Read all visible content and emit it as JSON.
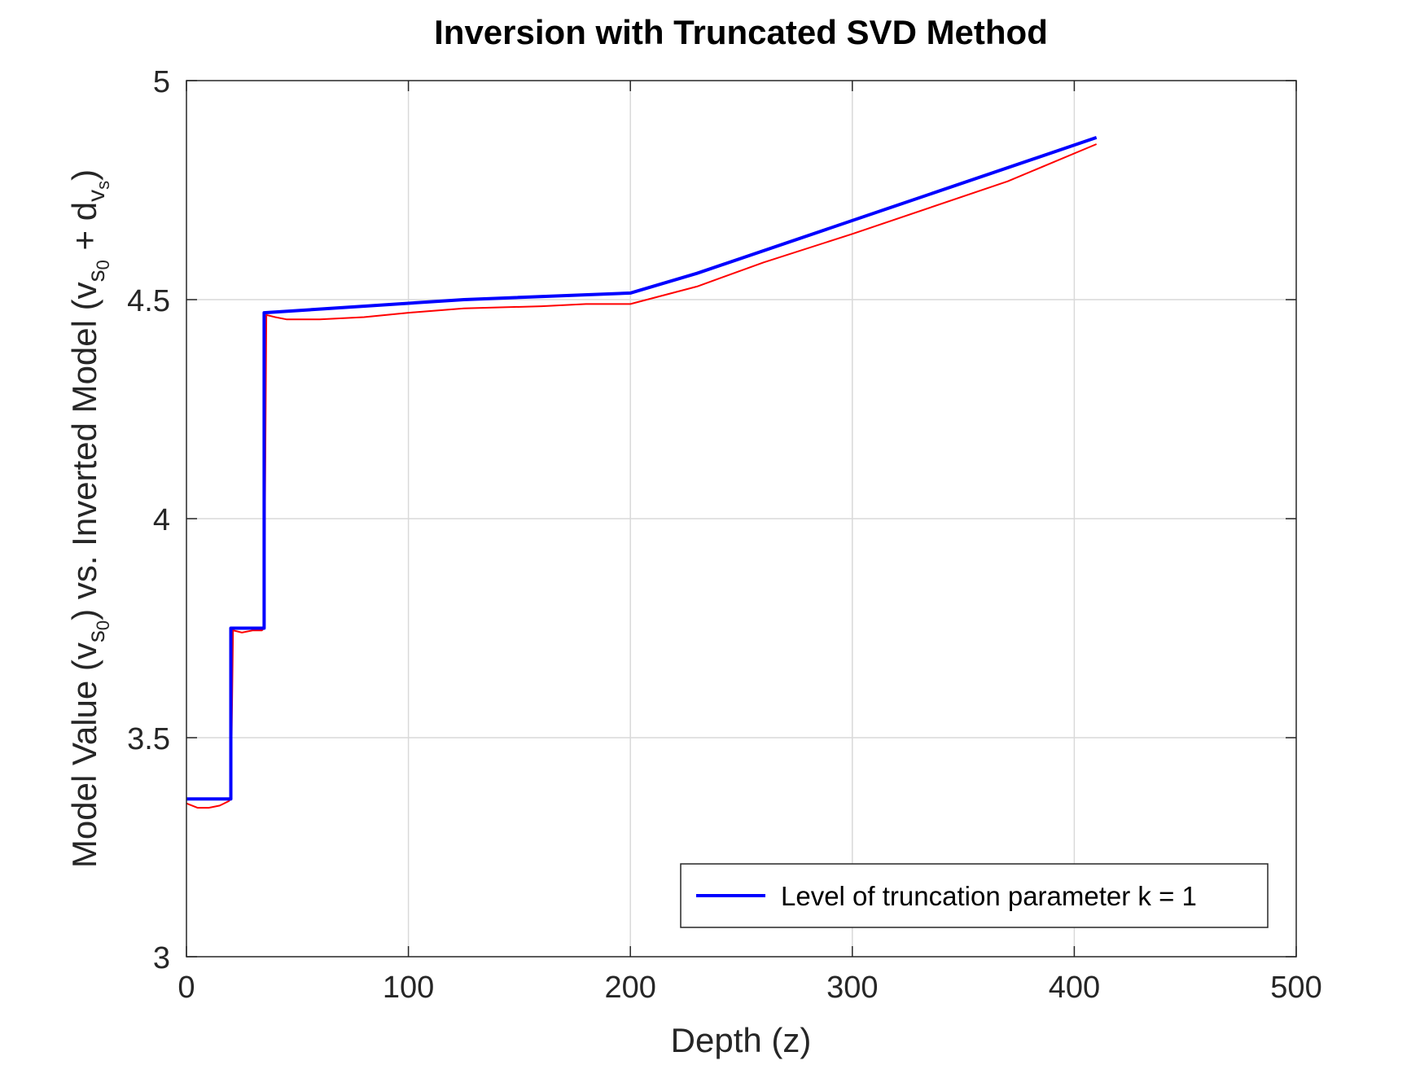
{
  "chart_data": {
    "type": "line",
    "title": "Inversion with Truncated SVD Method",
    "xlabel": "Depth (z)",
    "ylabel": {
      "part1": "Model Value (v",
      "sub1": "s",
      "sub1b": "0",
      "part2": ") vs. Inverted Model (v",
      "sub2": "s",
      "sub2b": "0",
      "part3": " + d",
      "sub3": "v",
      "sub3b": "s",
      "part4": ")"
    },
    "xlim": [
      0,
      500
    ],
    "ylim": [
      3,
      5
    ],
    "xticks": [
      0,
      100,
      200,
      300,
      400,
      500
    ],
    "xtick_labels": [
      "0",
      "100",
      "200",
      "300",
      "400",
      "500"
    ],
    "yticks": [
      3,
      3.5,
      4,
      4.5,
      5
    ],
    "ytick_labels": [
      "3",
      "3.5",
      "4",
      "4.5",
      "5"
    ],
    "grid": true,
    "legend_placement": "bottom-right",
    "legend_entries": [
      "Level of truncation parameter k = 1"
    ],
    "series": [
      {
        "name": "Level of truncation parameter k = 1",
        "color": "#0000ff",
        "x": [
          0,
          20,
          20,
          35,
          35,
          125,
          200,
          230,
          410
        ],
        "y": [
          3.36,
          3.36,
          3.75,
          3.75,
          4.47,
          4.5,
          4.515,
          4.56,
          4.87
        ]
      },
      {
        "color": "#ff0000",
        "x": [
          0,
          5,
          10,
          15,
          19,
          20,
          21,
          25,
          30,
          34,
          35,
          36,
          40,
          45,
          60,
          80,
          100,
          125,
          160,
          180,
          200,
          230,
          260,
          300,
          370,
          410
        ],
        "y": [
          3.35,
          3.34,
          3.34,
          3.345,
          3.355,
          3.36,
          3.745,
          3.74,
          3.745,
          3.745,
          3.75,
          4.465,
          4.46,
          4.455,
          4.455,
          4.46,
          4.47,
          4.48,
          4.485,
          4.49,
          4.49,
          4.53,
          4.585,
          4.65,
          4.77,
          4.855
        ]
      }
    ]
  }
}
